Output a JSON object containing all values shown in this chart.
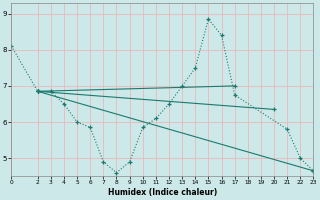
{
  "xlabel": "Humidex (Indice chaleur)",
  "bg_color": "#cce8e8",
  "grid_color": "#e8b8b8",
  "line_color": "#1a7a6e",
  "xlim": [
    0,
    23
  ],
  "ylim": [
    4.5,
    9.3
  ],
  "yticks": [
    5,
    6,
    7,
    8,
    9
  ],
  "xticks": [
    0,
    2,
    3,
    4,
    5,
    6,
    7,
    8,
    9,
    10,
    11,
    12,
    13,
    14,
    15,
    16,
    17,
    18,
    19,
    20,
    21,
    22,
    23
  ],
  "lines": [
    {
      "x": [
        0,
        2,
        3,
        4,
        5,
        6,
        7,
        8,
        9,
        10,
        11,
        12,
        13,
        14,
        15,
        16,
        17,
        21,
        22,
        23
      ],
      "y": [
        8.1,
        6.85,
        6.85,
        6.5,
        6.0,
        5.85,
        4.9,
        4.6,
        4.9,
        5.85,
        6.1,
        6.5,
        7.0,
        7.5,
        8.85,
        8.4,
        6.75,
        5.8,
        5.0,
        4.65
      ],
      "style": "dotted"
    },
    {
      "x": [
        2,
        23
      ],
      "y": [
        6.85,
        4.65
      ],
      "style": "solid"
    },
    {
      "x": [
        2,
        20
      ],
      "y": [
        6.85,
        6.35
      ],
      "style": "solid"
    },
    {
      "x": [
        2,
        17
      ],
      "y": [
        6.85,
        7.0
      ],
      "style": "solid"
    }
  ]
}
